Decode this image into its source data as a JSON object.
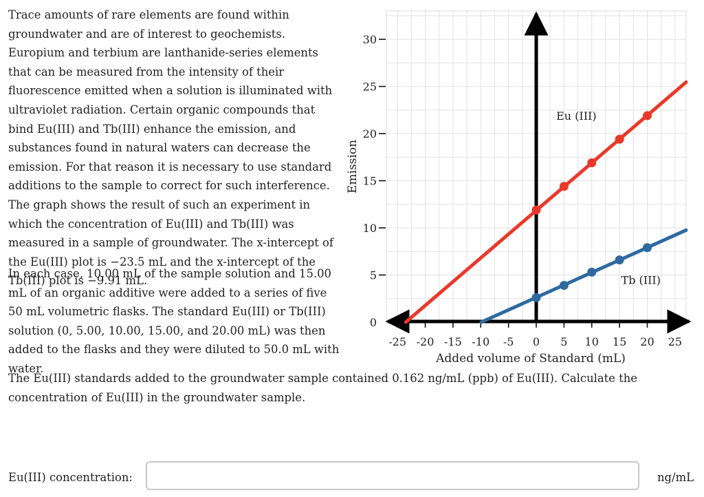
{
  "question": {
    "p1": "Trace amounts of rare elements are found within groundwater and are of interest to geochemists. Europium and terbium are lanthanide-series elements that can be measured from the intensity of their fluorescence emitted when a solution is illuminated with ultraviolet radiation. Certain organic compounds that bind Eu(III) and Tb(III) enhance the emission, and substances found in natural waters can decrease the emission. For that reason it is necessary to use standard additions to the sample to correct for such interference. The graph shows the result of such an experiment in which the concentration of Eu(III) and Tb(III) was measured in a sample of groundwater. The x-intercept of the Eu(III) plot is −23.5 mL and the x-intercept of the Tb(III) plot is −9.91 mL.",
    "p2": "In each case, 10.00 mL of the sample solution and 15.00 mL of an organic additive were added to a series of five 50 mL volumetric flasks. The standard Eu(III) or Tb(III) solution (0, 5.00, 10.00, 15.00, and 20.00 mL) was then added to the flasks and they were diluted to 50.0 mL with water.",
    "p3": "The Eu(III) standards added to the groundwater sample contained 0.162 ng/mL (ppb) of Eu(III). Calculate the concentration of Eu(III) in the groundwater sample."
  },
  "answer": {
    "label": "Eu(III) concentration:",
    "value": "",
    "placeholder": "",
    "unit": "ng/mL"
  },
  "chart_data": {
    "type": "line",
    "title": "",
    "xlabel": "Added volume of Standard (mL)",
    "ylabel": "Emission",
    "xlim": [
      -27,
      27
    ],
    "ylim": [
      0,
      33
    ],
    "xticks": [
      -25,
      -20,
      -15,
      -10,
      -5,
      0,
      5,
      10,
      15,
      20,
      25
    ],
    "yticks": [
      0,
      5,
      10,
      15,
      20,
      25,
      30
    ],
    "grid": true,
    "series": [
      {
        "name": "Eu (III)",
        "color": "#e8392b",
        "line": {
          "x_start": -23.5,
          "x_end": 27,
          "slope": 0.504,
          "intercept": 11.85
        },
        "points": [
          {
            "x": 0,
            "y": 11.9
          },
          {
            "x": 5,
            "y": 14.4
          },
          {
            "x": 10,
            "y": 16.9
          },
          {
            "x": 15,
            "y": 19.4
          },
          {
            "x": 20,
            "y": 21.9
          }
        ]
      },
      {
        "name": "Tb (III)",
        "color": "#2e6aa0",
        "line": {
          "x_start": -9.91,
          "x_end": 27,
          "slope": 0.2645,
          "intercept": 2.62
        },
        "points": [
          {
            "x": 0,
            "y": 2.6
          },
          {
            "x": 5,
            "y": 3.9
          },
          {
            "x": 10,
            "y": 5.3
          },
          {
            "x": 15,
            "y": 6.6
          },
          {
            "x": 20,
            "y": 7.9
          }
        ]
      }
    ]
  }
}
